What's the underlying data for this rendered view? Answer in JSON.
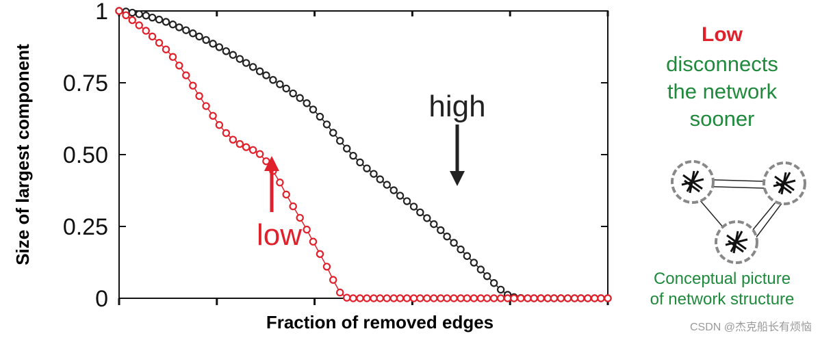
{
  "chart_data": {
    "type": "scatter",
    "title": "",
    "xlabel": "Fraction of removed edges",
    "ylabel": "Size of largest component",
    "xlim": [
      0,
      1
    ],
    "ylim": [
      0,
      1
    ],
    "y_ticks": [
      {
        "value": 0,
        "label": "0"
      },
      {
        "value": 0.25,
        "label": "0.25"
      },
      {
        "value": 0.5,
        "label": "0.50"
      },
      {
        "value": 0.75,
        "label": "0.75"
      },
      {
        "value": 1,
        "label": "1"
      }
    ],
    "x_ticks": [
      0,
      0.2,
      0.4,
      0.6,
      0.8,
      1.0
    ],
    "grid": false,
    "series": [
      {
        "name": "high",
        "color": "#222222",
        "points": [
          [
            0.0,
            1.0
          ],
          [
            0.014,
            0.998
          ],
          [
            0.027,
            0.994
          ],
          [
            0.041,
            0.989
          ],
          [
            0.055,
            0.984
          ],
          [
            0.068,
            0.977
          ],
          [
            0.082,
            0.97
          ],
          [
            0.096,
            0.962
          ],
          [
            0.11,
            0.953
          ],
          [
            0.123,
            0.943
          ],
          [
            0.137,
            0.933
          ],
          [
            0.151,
            0.922
          ],
          [
            0.164,
            0.911
          ],
          [
            0.178,
            0.899
          ],
          [
            0.192,
            0.886
          ],
          [
            0.205,
            0.874
          ],
          [
            0.219,
            0.86
          ],
          [
            0.233,
            0.847
          ],
          [
            0.247,
            0.833
          ],
          [
            0.26,
            0.819
          ],
          [
            0.274,
            0.805
          ],
          [
            0.288,
            0.79
          ],
          [
            0.301,
            0.776
          ],
          [
            0.315,
            0.76
          ],
          [
            0.329,
            0.745
          ],
          [
            0.342,
            0.73
          ],
          [
            0.356,
            0.713
          ],
          [
            0.37,
            0.697
          ],
          [
            0.384,
            0.679
          ],
          [
            0.397,
            0.657
          ],
          [
            0.411,
            0.632
          ],
          [
            0.425,
            0.605
          ],
          [
            0.438,
            0.576
          ],
          [
            0.452,
            0.548
          ],
          [
            0.466,
            0.521
          ],
          [
            0.479,
            0.496
          ],
          [
            0.493,
            0.473
          ],
          [
            0.507,
            0.452
          ],
          [
            0.521,
            0.433
          ],
          [
            0.534,
            0.414
          ],
          [
            0.548,
            0.395
          ],
          [
            0.562,
            0.376
          ],
          [
            0.575,
            0.357
          ],
          [
            0.589,
            0.338
          ],
          [
            0.603,
            0.319
          ],
          [
            0.616,
            0.299
          ],
          [
            0.63,
            0.279
          ],
          [
            0.644,
            0.258
          ],
          [
            0.658,
            0.237
          ],
          [
            0.671,
            0.215
          ],
          [
            0.685,
            0.193
          ],
          [
            0.699,
            0.17
          ],
          [
            0.712,
            0.147
          ],
          [
            0.726,
            0.124
          ],
          [
            0.74,
            0.1
          ],
          [
            0.753,
            0.077
          ],
          [
            0.767,
            0.053
          ],
          [
            0.781,
            0.03
          ],
          [
            0.795,
            0.012
          ],
          [
            0.808,
            0.004
          ],
          [
            0.822,
            0.001
          ],
          [
            0.836,
            0.0
          ],
          [
            0.849,
            0.0
          ],
          [
            0.863,
            0.0
          ],
          [
            0.877,
            0.0
          ],
          [
            0.89,
            0.0
          ],
          [
            0.904,
            0.0
          ],
          [
            0.918,
            0.0
          ],
          [
            0.932,
            0.0
          ],
          [
            0.945,
            0.0
          ],
          [
            0.959,
            0.0
          ],
          [
            0.973,
            0.0
          ],
          [
            0.986,
            0.0
          ],
          [
            1.0,
            0.0
          ]
        ]
      },
      {
        "name": "low",
        "color": "#e0202a",
        "points": [
          [
            0.0,
            1.0
          ],
          [
            0.014,
            0.985
          ],
          [
            0.027,
            0.968
          ],
          [
            0.041,
            0.95
          ],
          [
            0.055,
            0.931
          ],
          [
            0.068,
            0.911
          ],
          [
            0.082,
            0.889
          ],
          [
            0.096,
            0.866
          ],
          [
            0.11,
            0.84
          ],
          [
            0.123,
            0.81
          ],
          [
            0.137,
            0.776
          ],
          [
            0.151,
            0.74
          ],
          [
            0.164,
            0.704
          ],
          [
            0.178,
            0.669
          ],
          [
            0.192,
            0.635
          ],
          [
            0.205,
            0.603
          ],
          [
            0.219,
            0.575
          ],
          [
            0.233,
            0.552
          ],
          [
            0.247,
            0.537
          ],
          [
            0.26,
            0.526
          ],
          [
            0.274,
            0.516
          ],
          [
            0.288,
            0.502
          ],
          [
            0.301,
            0.477
          ],
          [
            0.315,
            0.443
          ],
          [
            0.329,
            0.403
          ],
          [
            0.342,
            0.361
          ],
          [
            0.356,
            0.32
          ],
          [
            0.37,
            0.28
          ],
          [
            0.384,
            0.239
          ],
          [
            0.397,
            0.197
          ],
          [
            0.411,
            0.154
          ],
          [
            0.425,
            0.11
          ],
          [
            0.438,
            0.064
          ],
          [
            0.452,
            0.02
          ],
          [
            0.466,
            0.002
          ],
          [
            0.479,
            0.0
          ],
          [
            0.493,
            0.0
          ],
          [
            0.507,
            0.0
          ],
          [
            0.521,
            0.0
          ],
          [
            0.534,
            0.0
          ],
          [
            0.548,
            0.0
          ],
          [
            0.562,
            0.0
          ],
          [
            0.575,
            0.0
          ],
          [
            0.589,
            0.0
          ],
          [
            0.603,
            0.0
          ],
          [
            0.616,
            0.0
          ],
          [
            0.63,
            0.0
          ],
          [
            0.644,
            0.0
          ],
          [
            0.658,
            0.0
          ],
          [
            0.671,
            0.0
          ],
          [
            0.685,
            0.0
          ],
          [
            0.699,
            0.0
          ],
          [
            0.712,
            0.0
          ],
          [
            0.726,
            0.0
          ],
          [
            0.74,
            0.0
          ],
          [
            0.753,
            0.0
          ],
          [
            0.767,
            0.0
          ],
          [
            0.781,
            0.0
          ],
          [
            0.795,
            0.0
          ],
          [
            0.808,
            0.0
          ],
          [
            0.822,
            0.0
          ],
          [
            0.836,
            0.0
          ],
          [
            0.849,
            0.0
          ],
          [
            0.863,
            0.0
          ],
          [
            0.877,
            0.0
          ],
          [
            0.89,
            0.0
          ],
          [
            0.904,
            0.0
          ],
          [
            0.918,
            0.0
          ],
          [
            0.932,
            0.0
          ],
          [
            0.945,
            0.0
          ],
          [
            0.959,
            0.0
          ],
          [
            0.973,
            0.0
          ],
          [
            0.986,
            0.0
          ],
          [
            1.0,
            0.0
          ]
        ]
      }
    ],
    "annotations": [
      {
        "text": "high",
        "color": "#222222",
        "arrow": "down"
      },
      {
        "text": "low",
        "color": "#e0202a",
        "arrow": "up"
      }
    ]
  },
  "side_panel": {
    "headline": "Low",
    "headline_color": "#e0202a",
    "lines": [
      "disconnects",
      "the network",
      "sooner"
    ],
    "text_color": "#1f8a3c",
    "caption": [
      "Conceptual picture",
      "of network structure"
    ]
  },
  "watermark": "CSDN @杰克船长有烦恼"
}
